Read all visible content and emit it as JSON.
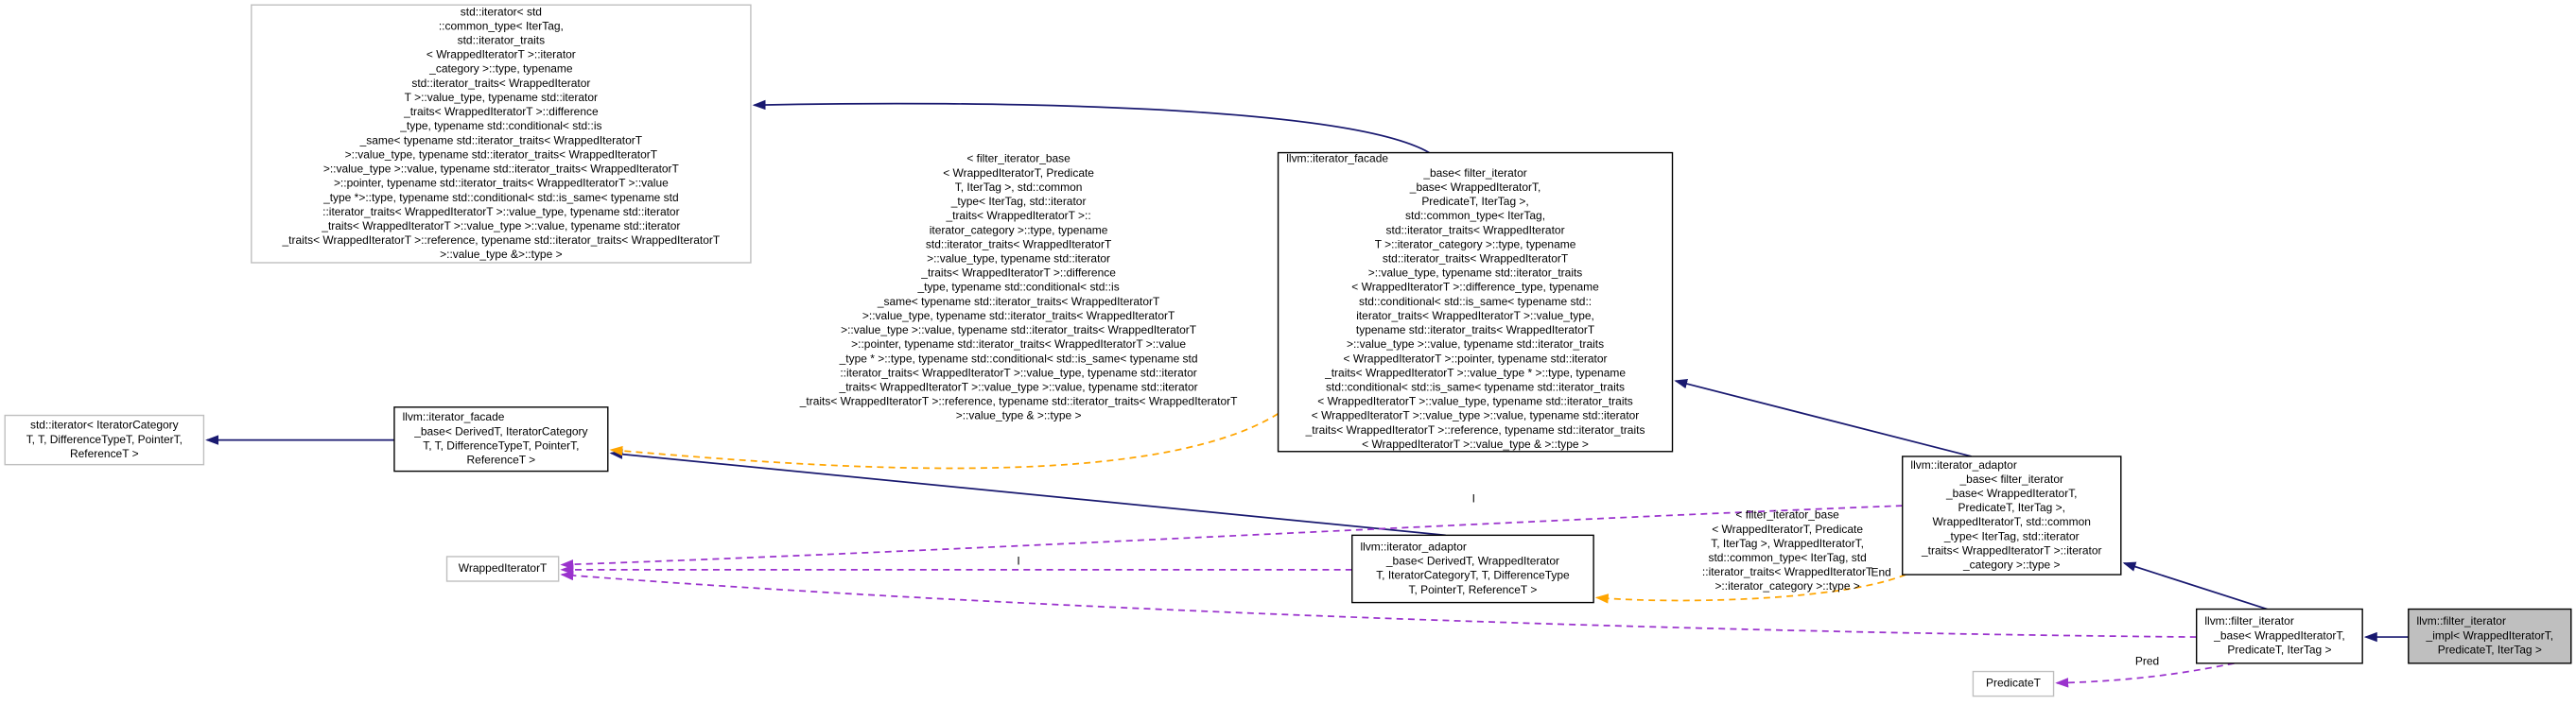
{
  "nodes": [
    {
      "lines": [
        "std::iterator< std",
        "::common_type< IterTag,",
        " std::iterator_traits",
        "< WrappedIteratorT >::iterator",
        "_category >::type, typename",
        " std::iterator_traits< WrappedIterator",
        "T >::value_type, typename std::iterator",
        "_traits< WrappedIteratorT >::difference",
        "_type, typename std::conditional< std::is",
        "_same< typename std::iterator_traits< WrappedIteratorT",
        " >::value_type, typename std::iterator_traits< WrappedIteratorT",
        " >::value_type >::value, typename std::iterator_traits< WrappedIteratorT",
        " >::pointer, typename std::iterator_traits< WrappedIteratorT >::value",
        "_type *>::type, typename std::conditional< std::is_same< typename std",
        "::iterator_traits< WrappedIteratorT >::value_type, typename std::iterator",
        "_traits< WrappedIteratorT >::value_type >::value, typename std::iterator",
        "_traits< WrappedIteratorT >::reference, typename std::iterator_traits< WrappedIteratorT",
        " >::value_type &>::type >"
      ]
    },
    {
      "lines": [
        "std::iterator< IteratorCategory",
        "T, T, DifferenceTypeT, PointerT,",
        "ReferenceT >"
      ]
    },
    {
      "lines": [
        "llvm::iterator_facade",
        "_base< DerivedT, IteratorCategory",
        "T, T, DifferenceTypeT, PointerT,",
        "ReferenceT >"
      ]
    },
    {
      "lines": [
        "llvm::iterator_facade",
        "_base< filter_iterator",
        "_base< WrappedIteratorT,",
        " PredicateT, IterTag >,",
        " std::common_type< IterTag,",
        " std::iterator_traits< WrappedIterator",
        "T >::iterator_category >::type, typename",
        " std::iterator_traits< WrappedIteratorT",
        " >::value_type, typename std::iterator_traits",
        "< WrappedIteratorT >::difference_type, typename",
        " std::conditional< std::is_same< typename std::",
        "iterator_traits< WrappedIteratorT >::value_type,",
        " typename std::iterator_traits< WrappedIteratorT",
        " >::value_type >::value, typename std::iterator_traits",
        "< WrappedIteratorT >::pointer, typename std::iterator",
        "_traits< WrappedIteratorT >::value_type * >::type, typename",
        " std::conditional< std::is_same< typename std::iterator_traits",
        "< WrappedIteratorT >::value_type, typename std::iterator_traits",
        "< WrappedIteratorT >::value_type >::value, typename std::iterator",
        "_traits< WrappedIteratorT >::reference, typename std::iterator_traits",
        "< WrappedIteratorT >::value_type & >::type >"
      ]
    },
    {
      "lines": [
        "llvm::iterator_adaptor",
        "_base< filter_iterator",
        "_base< WrappedIteratorT,",
        " PredicateT, IterTag >,",
        " WrappedIteratorT, std::common",
        "_type< IterTag, std::iterator",
        "_traits< WrappedIteratorT >::iterator",
        "_category >::type >"
      ]
    },
    {
      "lines": [
        "llvm::iterator_adaptor",
        "_base< DerivedT, WrappedIterator",
        "T, IteratorCategoryT, T, DifferenceType",
        "T, PointerT, ReferenceT >"
      ]
    },
    {
      "lines": [
        "WrappedIteratorT"
      ]
    },
    {
      "lines": [
        "PredicateT"
      ]
    },
    {
      "lines": [
        "llvm::filter_iterator",
        "_base< WrappedIteratorT,",
        " PredicateT, IterTag >"
      ]
    },
    {
      "lines": [
        "llvm::filter_iterator",
        "_impl< WrappedIteratorT,",
        " PredicateT, IterTag >"
      ]
    }
  ],
  "edge_labels": [
    {
      "lines": [
        " < filter_iterator_base",
        "< WrappedIteratorT, Predicate",
        "T, IterTag >, std::common",
        "_type< IterTag, std::iterator",
        "_traits< WrappedIteratorT >::",
        "iterator_category >::type, typename",
        " std::iterator_traits< WrappedIteratorT",
        " >::value_type, typename std::iterator",
        "_traits< WrappedIteratorT >::difference",
        "_type, typename std::conditional< std::is",
        "_same< typename std::iterator_traits< WrappedIteratorT",
        " >::value_type, typename std::iterator_traits< WrappedIteratorT",
        " >::value_type >::value, typename std::iterator_traits< WrappedIteratorT",
        " >::pointer, typename std::iterator_traits< WrappedIteratorT >::value",
        "_type * >::type, typename std::conditional< std::is_same< typename std",
        "::iterator_traits< WrappedIteratorT >::value_type, typename std::iterator",
        "_traits< WrappedIteratorT >::value_type >::value, typename std::iterator",
        "_traits< WrappedIteratorT >::reference, typename std::iterator_traits< WrappedIteratorT",
        " >::value_type & >::type >"
      ]
    },
    {
      "lines": [
        "< filter_iterator_base",
        "< WrappedIteratorT, Predicate",
        "T, IterTag >, WrappedIteratorT,",
        " std::common_type< IterTag, std",
        "::iterator_traits< WrappedIteratorT",
        " >::iterator_category >::type >"
      ]
    },
    {
      "lines": [
        "I"
      ]
    },
    {
      "lines": [
        "I"
      ]
    },
    {
      "lines": [
        "End"
      ]
    },
    {
      "lines": [
        "Pred"
      ]
    }
  ]
}
